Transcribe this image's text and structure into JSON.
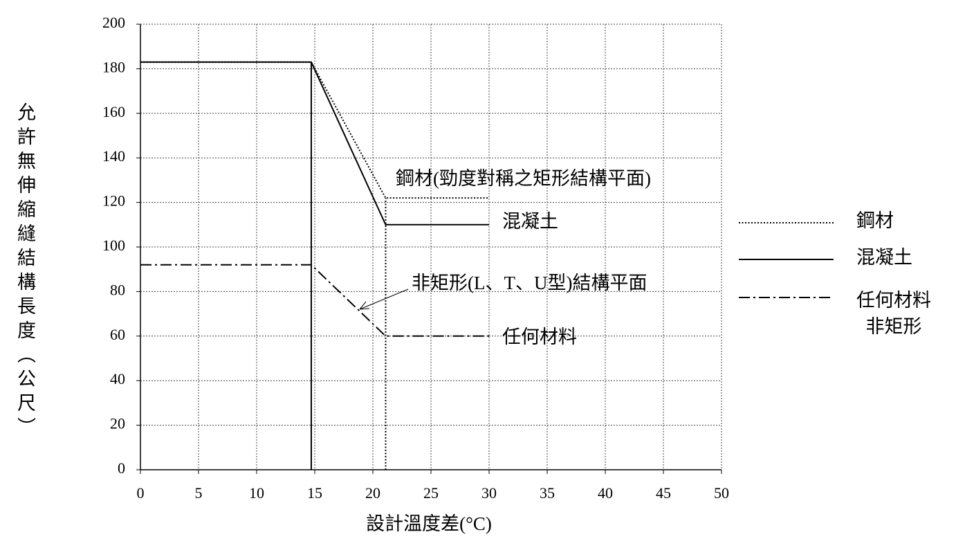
{
  "chart_data": {
    "type": "line",
    "y_label": "允許無伸縮縫結構長度（公尺）",
    "x_label": "設計溫度差(°C)",
    "xlim": [
      0,
      50
    ],
    "xticks": [
      0,
      5,
      10,
      15,
      20,
      25,
      30,
      35,
      40,
      45,
      50
    ],
    "ylim": [
      0,
      200
    ],
    "yticks": [
      0,
      20,
      40,
      60,
      80,
      100,
      120,
      140,
      160,
      180,
      200
    ],
    "grid": true,
    "legend": "right",
    "series": [
      {
        "name": "鋼材",
        "color": "#000000",
        "dash": "2,2.5",
        "x": [
          0,
          14.7,
          21.1,
          30
        ],
        "values": [
          183,
          183,
          122,
          122
        ]
      },
      {
        "name": "混凝土",
        "color": "#000000",
        "dash": "",
        "x": [
          0,
          14.7,
          21.1,
          30
        ],
        "values": [
          183,
          183,
          110,
          110
        ]
      },
      {
        "name": "任何材料\n非矩形",
        "color": "#000000",
        "dash": "16,5,3,5",
        "x": [
          0,
          14.7,
          21.1,
          30
        ],
        "values": [
          92,
          92,
          60,
          60
        ]
      }
    ],
    "reference_lines": [
      {
        "x": 14.7,
        "y": [
          0,
          183
        ],
        "dash": ""
      },
      {
        "x": 21.1,
        "y": [
          0,
          122
        ],
        "dash": "2,2.5"
      }
    ],
    "annotations": [
      "鋼材(勁度對稱之矩形結構平面)",
      "混凝土",
      "非矩形(L、T、U型)結構平面",
      "任何材料"
    ]
  }
}
